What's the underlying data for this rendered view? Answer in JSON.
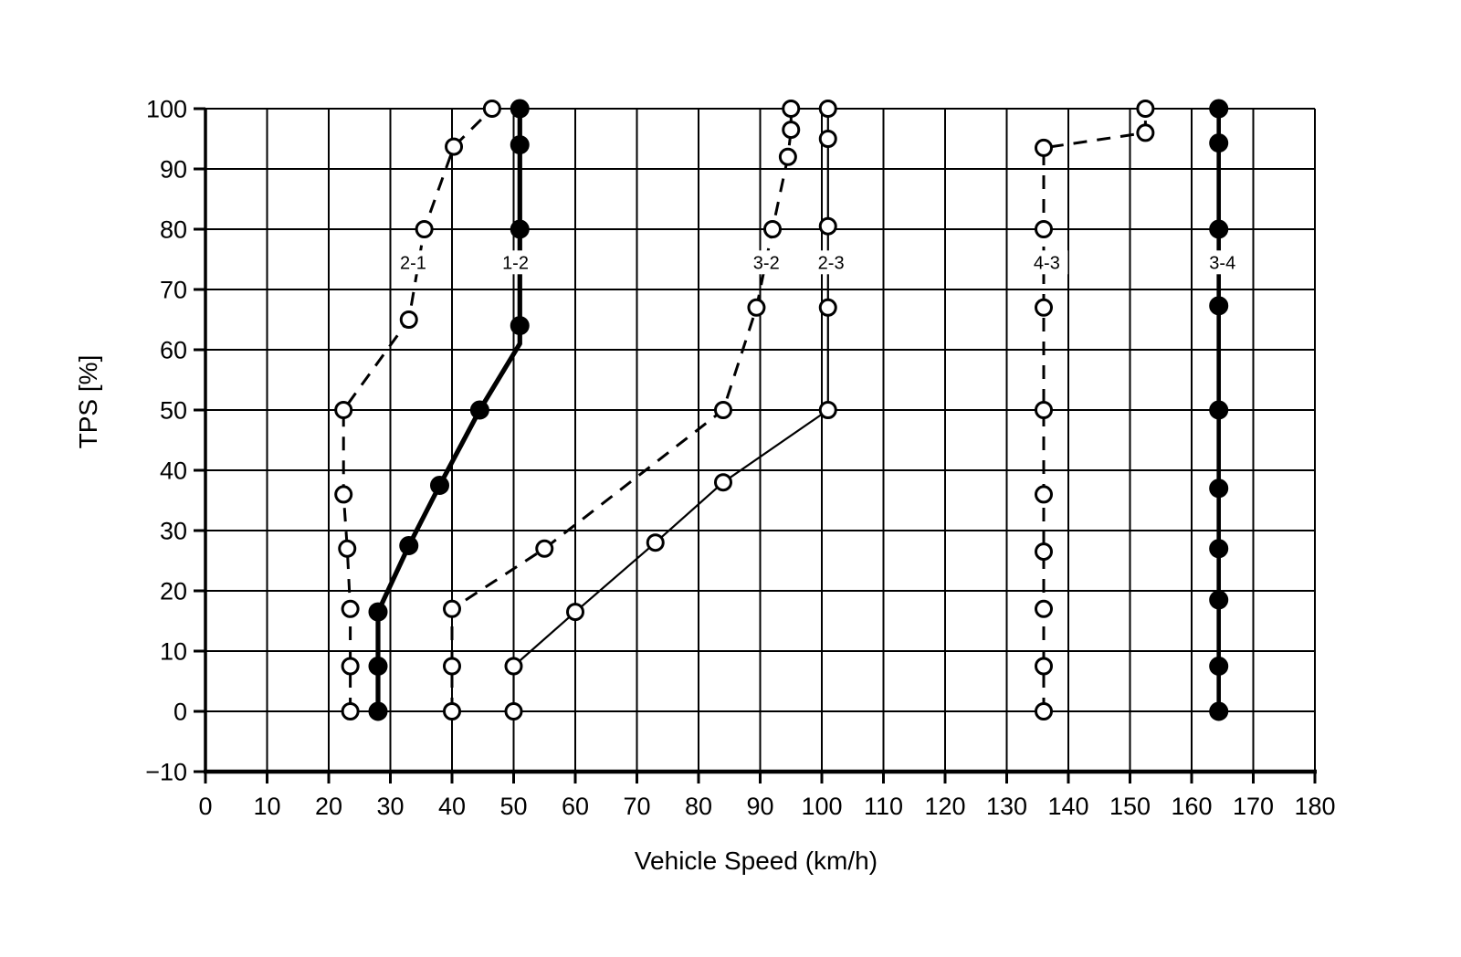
{
  "page": {
    "background": "#ffffff",
    "ink": "#000000"
  },
  "chart_data": {
    "type": "line",
    "title": "",
    "xlabel": "Vehicle Speed (km/h)",
    "ylabel": "TPS [%]",
    "xlim": [
      0,
      180
    ],
    "ylim": [
      -10,
      100
    ],
    "grid": true,
    "legend_position": "inline-curve-labels",
    "xticks": [
      0,
      10,
      20,
      30,
      40,
      50,
      60,
      70,
      80,
      90,
      100,
      110,
      120,
      130,
      140,
      150,
      160,
      170,
      180
    ],
    "xtick_labels": [
      "0",
      "10",
      "20",
      "30",
      "40",
      "50",
      "60",
      "70",
      "80",
      "90",
      "100",
      "110",
      "120",
      "130",
      "140",
      "150",
      "160",
      "170",
      "180"
    ],
    "yticks": [
      -10,
      0,
      10,
      20,
      30,
      40,
      50,
      60,
      70,
      80,
      90,
      100
    ],
    "ytick_labels": [
      "−10",
      "0",
      "10",
      "20",
      "30",
      "40",
      "50",
      "60",
      "70",
      "80",
      "90",
      "100"
    ],
    "series": [
      {
        "name": "2-1",
        "label": "2-1",
        "label_at": {
          "x": 33.7,
          "y": 74.5
        },
        "line": "dashed",
        "marker": "open",
        "points": [
          [
            23.5,
            0
          ],
          [
            23.5,
            7.5
          ],
          [
            23.5,
            17
          ],
          [
            23,
            27
          ],
          [
            22.4,
            36
          ],
          [
            22.4,
            50
          ],
          [
            33,
            65
          ],
          [
            35.5,
            80
          ],
          [
            40.3,
            93.7
          ],
          [
            46.5,
            100
          ]
        ]
      },
      {
        "name": "1-2",
        "label": "1-2",
        "label_at": {
          "x": 50.3,
          "y": 74.5
        },
        "line": "solid-thick",
        "marker": "filled",
        "points": [
          [
            28,
            0
          ],
          [
            28,
            7.5
          ],
          [
            28,
            16.5
          ],
          [
            33,
            27.5
          ],
          [
            38,
            37.5
          ],
          [
            44.5,
            50
          ],
          [
            51,
            61,
            0
          ],
          [
            51,
            64
          ],
          [
            51,
            80
          ],
          [
            51,
            94
          ],
          [
            51,
            100
          ]
        ]
      },
      {
        "name": "3-2",
        "label": "3-2",
        "label_at": {
          "x": 91,
          "y": 74.5
        },
        "line": "dashed",
        "marker": "open",
        "points": [
          [
            40,
            0
          ],
          [
            40,
            7.5
          ],
          [
            40,
            17
          ],
          [
            55,
            27
          ],
          [
            84,
            50
          ],
          [
            89.4,
            67
          ],
          [
            92,
            80
          ],
          [
            94.5,
            92
          ],
          [
            95,
            96.5
          ],
          [
            95,
            100
          ]
        ]
      },
      {
        "name": "2-3",
        "label": "2-3",
        "label_at": {
          "x": 101.5,
          "y": 74.5
        },
        "line": "solid-thin",
        "marker": "open",
        "points": [
          [
            50,
            0
          ],
          [
            50,
            7.5
          ],
          [
            60,
            16.5
          ],
          [
            73,
            28
          ],
          [
            84,
            38
          ],
          [
            101,
            50
          ],
          [
            101,
            67
          ],
          [
            101,
            80.5
          ],
          [
            101,
            95
          ],
          [
            101,
            100
          ]
        ]
      },
      {
        "name": "4-3",
        "label": "4-3",
        "label_at": {
          "x": 136.5,
          "y": 74.5
        },
        "line": "dashed",
        "marker": "open",
        "points": [
          [
            136,
            0
          ],
          [
            136,
            7.5
          ],
          [
            136,
            17
          ],
          [
            136,
            26.5
          ],
          [
            136,
            36
          ],
          [
            136,
            50
          ],
          [
            136,
            67
          ],
          [
            136,
            80
          ],
          [
            136,
            93.5
          ],
          [
            152.5,
            96
          ],
          [
            152.5,
            100
          ]
        ]
      },
      {
        "name": "3-4",
        "label": "3-4",
        "label_at": {
          "x": 165,
          "y": 74.5
        },
        "line": "solid-medium",
        "marker": "filled",
        "points": [
          [
            164.4,
            0
          ],
          [
            164.4,
            7.5
          ],
          [
            164.4,
            18.5
          ],
          [
            164.4,
            27
          ],
          [
            164.4,
            37
          ],
          [
            164.4,
            50
          ],
          [
            164.4,
            67.3
          ],
          [
            164.4,
            80
          ],
          [
            164.4,
            94.3
          ],
          [
            164.4,
            100
          ]
        ]
      }
    ]
  }
}
